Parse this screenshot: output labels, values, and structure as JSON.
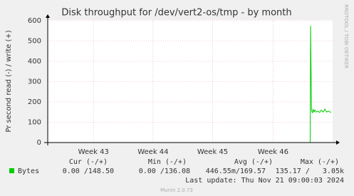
{
  "chart_data": {
    "type": "line",
    "title": "Disk throughput for /dev/vert2-os/tmp - by month",
    "y_label": "Pr second read (-) / write (+)",
    "side_text": "RRDTOOL / TOBI OETIKER",
    "x": [
      30.4,
      30.45,
      30.55,
      30.65,
      30.75,
      30.85,
      30.95,
      31.1,
      31.3,
      31.5,
      31.7,
      31.9,
      32.1,
      32.3,
      32.5,
      32.7,
      32.85
    ],
    "series": [
      {
        "name": "Bytes",
        "color": "#00cc00",
        "values": [
          0,
          575,
          160,
          145,
          165,
          150,
          160,
          150,
          155,
          148,
          160,
          150,
          165,
          150,
          155,
          150,
          150
        ]
      }
    ],
    "xlim": [
      0,
      33
    ],
    "xticks": [
      {
        "value": 5.3,
        "label": "Week 43"
      },
      {
        "value": 12.2,
        "label": "Week 44"
      },
      {
        "value": 19.1,
        "label": "Week 45"
      },
      {
        "value": 26.1,
        "label": "Week 46"
      }
    ],
    "ylim": [
      0,
      600
    ],
    "yticks": [
      0,
      100,
      200,
      300,
      400,
      500,
      600
    ],
    "grid": true,
    "summary": {
      "headers": [
        "Cur (-/+)",
        "Min (-/+)",
        "Avg (-/+)",
        "Max (-/+)"
      ],
      "row": [
        "0.00 /148.50",
        "0.00 /136.08",
        "446.55m/169.57",
        "135.17 /   3.05k"
      ]
    },
    "last_update": "Last update: Thu Nov 21 09:00:03 2024",
    "footer": "Munin 2.0.73"
  }
}
